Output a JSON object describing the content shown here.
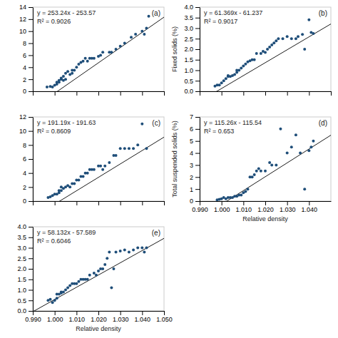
{
  "chart_data": [
    {
      "type": "scatter",
      "title": "(a)",
      "annotations": [
        "y = 253.24x - 253.57",
        "R² = 0.9026"
      ],
      "color": "#1f4e79",
      "fit": {
        "slope": 253.24,
        "intercept": -253.57,
        "color": "#1a1a1a"
      },
      "xlim": [
        0.99,
        1.05
      ],
      "ylim": [
        0,
        14
      ],
      "xticks": [
        0.99,
        1,
        1.01,
        1.02,
        1.03,
        1.04,
        1.05
      ],
      "yticks": [
        0,
        2,
        4,
        6,
        8,
        10,
        12,
        14
      ],
      "tick_labels": "y",
      "x": [
        0.9965,
        0.998,
        0.999,
        1.0,
        1.001,
        1.001,
        1.002,
        1.002,
        1.003,
        1.003,
        1.004,
        1.004,
        1.005,
        1.005,
        1.006,
        1.007,
        1.008,
        1.008,
        1.009,
        1.01,
        1.011,
        1.012,
        1.013,
        1.014,
        1.015,
        1.016,
        1.017,
        1.018,
        1.02,
        1.021,
        1.022,
        1.025,
        1.026,
        1.028,
        1.03,
        1.032,
        1.035,
        1.037,
        1.04,
        1.041,
        1.042,
        1.043
      ],
      "values": [
        0.7,
        0.8,
        0.7,
        1.0,
        1.2,
        1.5,
        1.8,
        1.5,
        2.0,
        2.2,
        1.8,
        2.5,
        2.0,
        3.0,
        3.3,
        2.8,
        3.0,
        3.5,
        3.5,
        4.0,
        4.5,
        4.8,
        5.0,
        5.5,
        5.0,
        5.5,
        5.5,
        5.5,
        5.8,
        6.0,
        6.5,
        6.5,
        6.5,
        7.0,
        7.5,
        8.0,
        9.0,
        9.5,
        10.0,
        9.5,
        10.5,
        12.5
      ]
    },
    {
      "type": "scatter",
      "title": "(b)",
      "annotations": [
        "y = 61.369x - 61.237",
        "R² = 0.9017"
      ],
      "ylabel": "Fixed solids (%)",
      "color": "#1f4e79",
      "fit": {
        "slope": 61.369,
        "intercept": -61.237,
        "color": "#1a1a1a"
      },
      "xlim": [
        0.99,
        1.05
      ],
      "ylim": [
        0.0,
        4.0
      ],
      "xticks": [
        0.99,
        1,
        1.01,
        1.02,
        1.03,
        1.04,
        1.05
      ],
      "yticks": [
        {
          "value": 0,
          "label": "0.0"
        },
        0.5,
        {
          "value": 1,
          "label": "1.0"
        },
        1.5,
        {
          "value": 2,
          "label": "2.0"
        },
        2.5,
        {
          "value": 3,
          "label": "3.0"
        },
        3.5,
        {
          "value": 4,
          "label": "4.0"
        }
      ],
      "tick_labels": "y",
      "x": [
        0.997,
        0.998,
        0.999,
        1.0,
        1.001,
        1.002,
        1.003,
        1.003,
        1.004,
        1.005,
        1.006,
        1.007,
        1.007,
        1.008,
        1.009,
        1.01,
        1.011,
        1.012,
        1.013,
        1.014,
        1.015,
        1.016,
        1.018,
        1.019,
        1.02,
        1.021,
        1.022,
        1.023,
        1.024,
        1.025,
        1.026,
        1.028,
        1.03,
        1.032,
        1.034,
        1.035,
        1.037,
        1.038,
        1.04,
        1.041,
        1.042
      ],
      "values": [
        0.25,
        0.3,
        0.3,
        0.4,
        0.5,
        0.6,
        0.7,
        0.75,
        0.7,
        0.75,
        0.8,
        0.9,
        1.0,
        1.0,
        1.1,
        1.2,
        1.3,
        1.4,
        1.45,
        1.5,
        1.5,
        1.8,
        1.8,
        1.9,
        1.85,
        2.0,
        2.1,
        2.2,
        2.3,
        2.4,
        2.5,
        2.5,
        2.6,
        2.5,
        2.5,
        2.6,
        2.7,
        2.0,
        3.4,
        2.8,
        2.75
      ]
    },
    {
      "type": "scatter",
      "title": "(c)",
      "annotations": [
        "y = 191.19x - 191.63",
        "R² = 0.8609"
      ],
      "color": "#1f4e79",
      "fit": {
        "slope": 191.19,
        "intercept": -191.63,
        "color": "#1a1a1a"
      },
      "xlim": [
        0.99,
        1.05
      ],
      "ylim": [
        0,
        12
      ],
      "xticks": [
        0.99,
        1,
        1.01,
        1.02,
        1.03,
        1.04,
        1.05
      ],
      "yticks": [
        0,
        2,
        4,
        6,
        8,
        10,
        12
      ],
      "tick_labels": "y",
      "x": [
        0.997,
        0.998,
        0.999,
        1.0,
        1.001,
        1.002,
        1.002,
        1.003,
        1.003,
        1.004,
        1.005,
        1.006,
        1.007,
        1.008,
        1.009,
        1.01,
        1.011,
        1.012,
        1.013,
        1.014,
        1.015,
        1.016,
        1.017,
        1.018,
        1.02,
        1.021,
        1.022,
        1.023,
        1.025,
        1.027,
        1.028,
        1.03,
        1.032,
        1.034,
        1.036,
        1.038,
        1.04,
        1.042
      ],
      "values": [
        0.5,
        0.6,
        0.8,
        1.0,
        1.0,
        1.2,
        1.5,
        1.5,
        2.0,
        1.8,
        2.0,
        2.2,
        2.0,
        2.5,
        2.5,
        3.0,
        3.0,
        3.5,
        3.5,
        4.0,
        4.0,
        4.5,
        4.5,
        4.5,
        5.0,
        5.0,
        4.5,
        5.0,
        5.5,
        6.5,
        6.5,
        7.5,
        7.5,
        7.5,
        7.5,
        8.0,
        11.0,
        7.5
      ]
    },
    {
      "type": "scatter",
      "title": "(d)",
      "annotations": [
        "y = 115.26x - 115.54",
        "R² = 0.653"
      ],
      "ylabel": "Total suspended solids (%)",
      "xlabel": "Relative density",
      "color": "#1f4e79",
      "fit": {
        "slope": 115.26,
        "intercept": -115.54,
        "color": "#1a1a1a"
      },
      "xlim": [
        0.99,
        1.05
      ],
      "ylim": [
        0,
        7
      ],
      "xticks": [
        {
          "value": 0.99,
          "label": "0.990"
        },
        {
          "value": 1,
          "label": "1.000"
        },
        {
          "value": 1.01,
          "label": "1.010"
        },
        {
          "value": 1.02,
          "label": "1.020"
        },
        {
          "value": 1.03,
          "label": "1.030"
        },
        {
          "value": 1.04,
          "label": "1.040"
        }
      ],
      "yticks": [
        0,
        1,
        2,
        3,
        4,
        5,
        6,
        7
      ],
      "x": [
        0.998,
        0.999,
        1.0,
        1.001,
        1.002,
        1.003,
        1.004,
        1.005,
        1.006,
        1.007,
        1.008,
        1.009,
        1.01,
        1.011,
        1.012,
        1.013,
        1.014,
        1.015,
        1.016,
        1.017,
        1.018,
        1.02,
        1.022,
        1.023,
        1.025,
        1.027,
        1.03,
        1.032,
        1.034,
        1.036,
        1.038,
        1.04,
        1.041,
        1.042
      ],
      "values": [
        0.1,
        0.15,
        0.2,
        0.3,
        0.2,
        0.3,
        0.3,
        0.3,
        0.4,
        0.4,
        0.5,
        0.5,
        0.7,
        0.8,
        1.0,
        2.0,
        2.0,
        2.2,
        2.5,
        2.7,
        2.5,
        2.5,
        3.2,
        3.0,
        3.0,
        6.0,
        4.0,
        4.5,
        5.5,
        4.0,
        1.0,
        4.2,
        4.5,
        5.0
      ]
    },
    {
      "type": "scatter",
      "title": "(e)",
      "annotations": [
        "y = 58.132x - 57.589",
        "R² = 0.6046"
      ],
      "xlabel": "Relative density",
      "color": "#1f4e79",
      "fit": {
        "slope": 58.132,
        "intercept": -57.589,
        "color": "#1a1a1a"
      },
      "xlim": [
        0.99,
        1.05
      ],
      "ylim": [
        0.0,
        4.0
      ],
      "xticks": [
        {
          "value": 0.99,
          "label": "0.990"
        },
        {
          "value": 1,
          "label": "1.000"
        },
        {
          "value": 1.01,
          "label": "1.010"
        },
        {
          "value": 1.02,
          "label": "1.020"
        },
        {
          "value": 1.03,
          "label": "1.030"
        },
        {
          "value": 1.04,
          "label": "1.040"
        },
        {
          "value": 1.05,
          "label": "1.050"
        }
      ],
      "yticks": [
        {
          "value": 0,
          "label": "0.0"
        },
        0.5,
        {
          "value": 1,
          "label": "1.0"
        },
        1.5,
        {
          "value": 2,
          "label": "2.0"
        },
        2.5,
        {
          "value": 3,
          "label": "3.0"
        },
        3.5,
        {
          "value": 4,
          "label": "4.0"
        }
      ],
      "x": [
        0.997,
        0.998,
        0.999,
        1.0,
        1.001,
        1.001,
        1.002,
        1.003,
        1.003,
        1.004,
        1.005,
        1.006,
        1.007,
        1.008,
        1.009,
        1.01,
        1.011,
        1.012,
        1.013,
        1.014,
        1.015,
        1.016,
        1.018,
        1.019,
        1.02,
        1.021,
        1.022,
        1.023,
        1.024,
        1.025,
        1.026,
        1.027,
        1.028,
        1.03,
        1.032,
        1.034,
        1.036,
        1.038,
        1.04,
        1.041,
        1.042
      ],
      "values": [
        0.5,
        0.55,
        0.4,
        0.5,
        0.6,
        0.8,
        0.8,
        0.85,
        0.9,
        0.9,
        1.0,
        1.1,
        1.2,
        1.3,
        1.3,
        1.3,
        1.4,
        1.5,
        1.5,
        1.5,
        1.5,
        1.7,
        1.8,
        1.7,
        1.9,
        2.0,
        2.0,
        2.2,
        2.5,
        2.8,
        1.1,
        2.0,
        2.8,
        2.85,
        2.9,
        2.8,
        2.9,
        3.0,
        3.0,
        2.8,
        3.0
      ]
    }
  ]
}
